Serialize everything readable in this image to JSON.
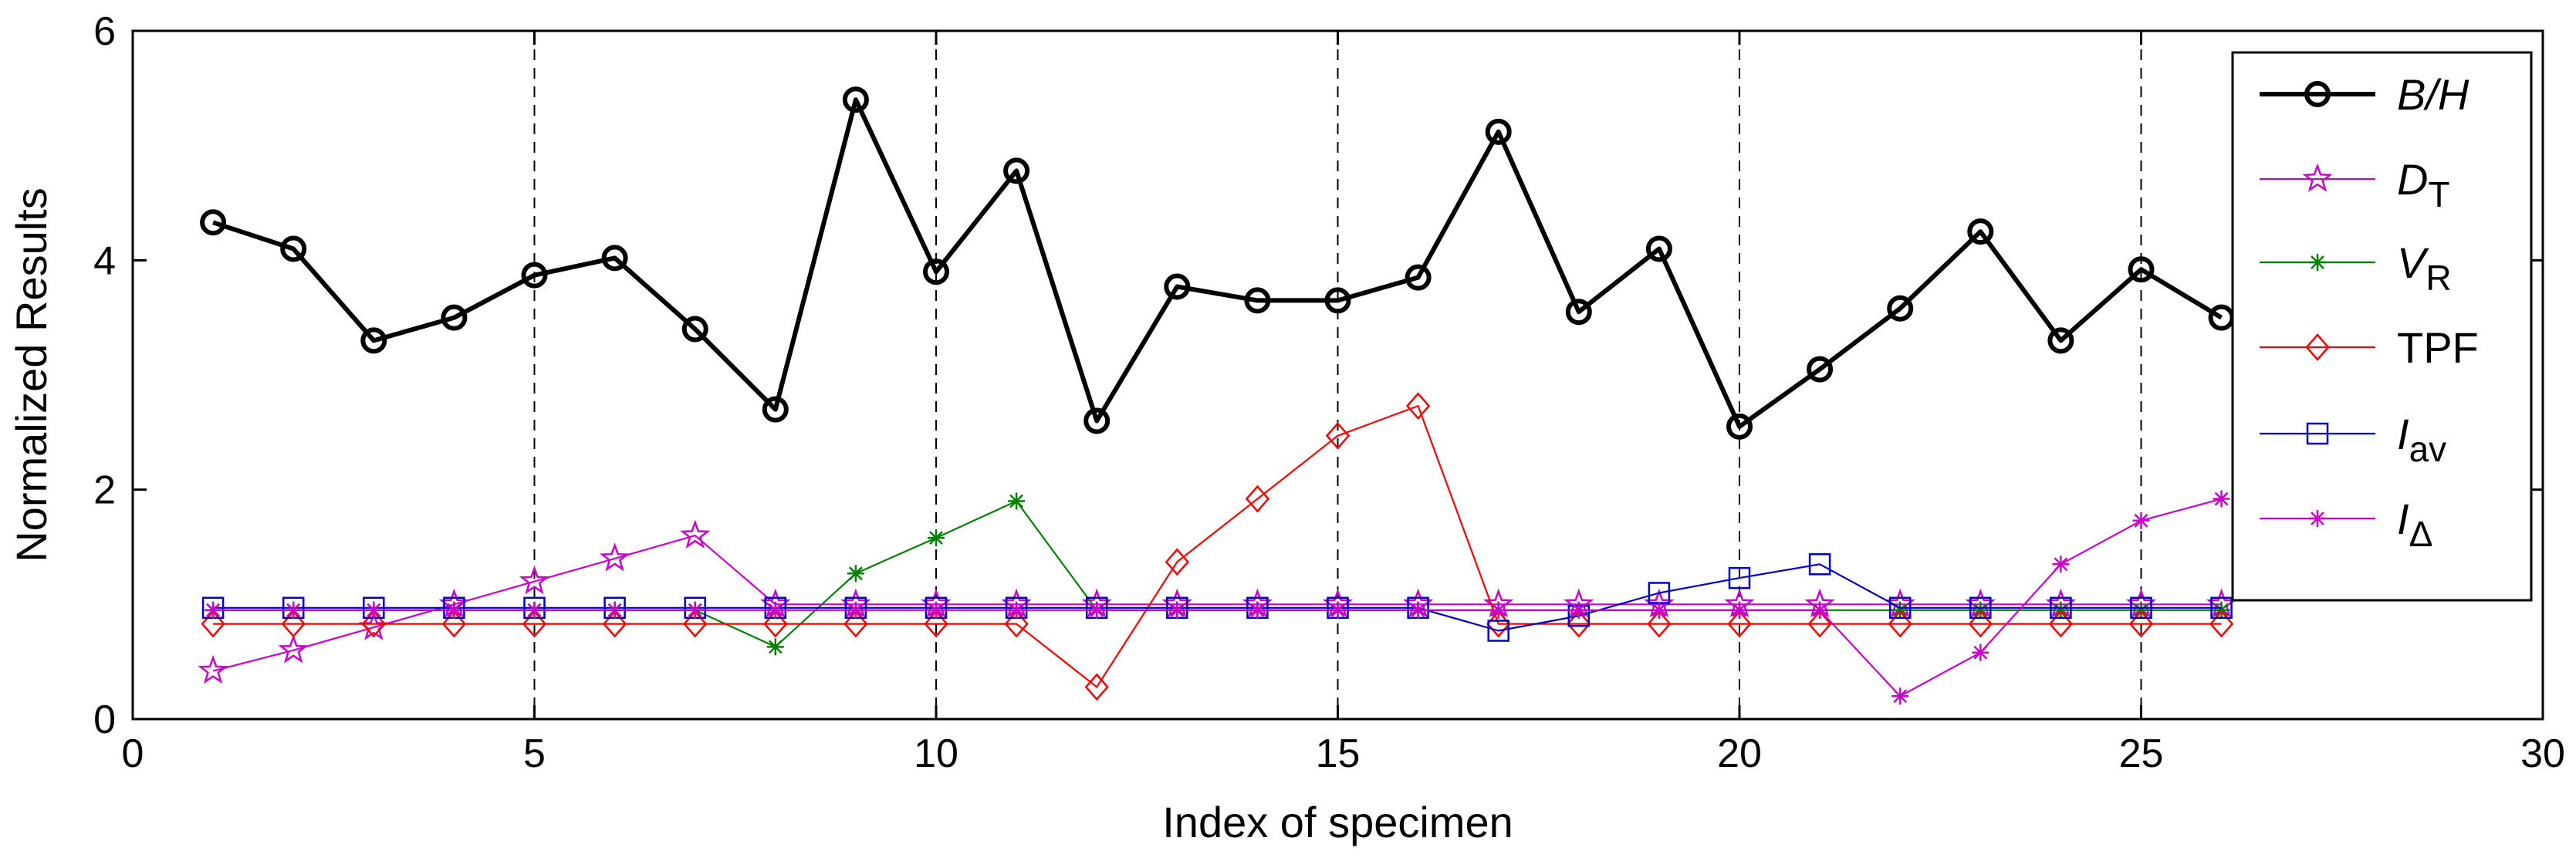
{
  "chart_data": {
    "type": "line",
    "title": "",
    "xlabel": "Index of specimen",
    "ylabel": "Normalized Results",
    "xlim": [
      0,
      30
    ],
    "ylim": [
      0,
      6
    ],
    "xticks": [
      0,
      5,
      10,
      15,
      20,
      25,
      30
    ],
    "yticks": [
      0,
      2,
      4,
      6
    ],
    "vertical_dashed_lines": [
      5,
      10,
      15,
      20,
      25
    ],
    "legend_position": "top-right",
    "x": [
      1,
      2,
      3,
      4,
      5,
      6,
      7,
      8,
      9,
      10,
      11,
      12,
      13,
      14,
      15,
      16,
      17,
      18,
      19,
      20,
      21,
      22,
      23,
      24,
      25,
      26
    ],
    "series": [
      {
        "name": "B/H",
        "legend_main": "B/H",
        "legend_sub": "",
        "italic": true,
        "color": "#000000",
        "marker": "circle",
        "values": [
          4.33,
          4.1,
          3.3,
          3.5,
          3.87,
          4.02,
          3.4,
          2.7,
          5.4,
          3.9,
          4.78,
          2.6,
          3.77,
          3.65,
          3.65,
          3.85,
          5.12,
          3.55,
          4.1,
          2.55,
          3.05,
          3.58,
          4.25,
          3.3,
          3.92,
          3.5
        ]
      },
      {
        "name": "D_T",
        "legend_main": "D",
        "legend_sub": "T",
        "italic": true,
        "color": "#cc00cc",
        "marker": "star",
        "values": [
          0.42,
          0.6,
          0.8,
          1.0,
          1.2,
          1.4,
          1.6,
          1.0,
          1.0,
          1.0,
          1.0,
          1.0,
          1.0,
          1.0,
          1.0,
          1.0,
          1.0,
          1.0,
          1.0,
          1.0,
          1.0,
          1.0,
          1.0,
          1.0,
          1.0,
          1.0
        ]
      },
      {
        "name": "V_R",
        "legend_main": "V",
        "legend_sub": "R",
        "italic": true,
        "color": "#008000",
        "marker": "asterisk",
        "values": [
          0.95,
          0.95,
          0.95,
          0.95,
          0.95,
          0.95,
          0.95,
          0.63,
          1.27,
          1.58,
          1.9,
          0.95,
          0.95,
          0.95,
          0.95,
          0.95,
          0.95,
          0.95,
          0.95,
          0.95,
          0.95,
          0.95,
          0.95,
          0.95,
          0.95,
          0.95
        ]
      },
      {
        "name": "TPF",
        "legend_main": "TPF",
        "legend_sub": "",
        "italic": false,
        "color": "#ff0000",
        "marker": "diamond",
        "values": [
          0.83,
          0.83,
          0.83,
          0.83,
          0.83,
          0.83,
          0.83,
          0.83,
          0.83,
          0.83,
          0.83,
          0.28,
          1.37,
          1.92,
          2.47,
          2.73,
          0.83,
          0.83,
          0.83,
          0.83,
          0.83,
          0.83,
          0.83,
          0.83,
          0.83,
          0.83
        ]
      },
      {
        "name": "I_av",
        "legend_main": "I",
        "legend_sub": "av",
        "italic": true,
        "color": "#0000cc",
        "marker": "square",
        "values": [
          0.97,
          0.97,
          0.97,
          0.97,
          0.97,
          0.97,
          0.97,
          0.97,
          0.97,
          0.97,
          0.97,
          0.97,
          0.97,
          0.97,
          0.97,
          0.97,
          0.77,
          0.9,
          1.1,
          1.23,
          1.35,
          0.97,
          0.97,
          0.97,
          0.97,
          0.97
        ]
      },
      {
        "name": "I_Δ",
        "legend_main": "I",
        "legend_sub": "Δ",
        "italic": true,
        "color": "#cc00cc",
        "marker": "asterisk",
        "values": [
          0.95,
          0.95,
          0.95,
          0.95,
          0.95,
          0.95,
          0.95,
          0.95,
          0.95,
          0.95,
          0.95,
          0.95,
          0.95,
          0.95,
          0.95,
          0.95,
          0.95,
          0.95,
          0.95,
          0.95,
          0.95,
          0.2,
          0.58,
          1.35,
          1.73,
          1.92
        ]
      }
    ]
  }
}
